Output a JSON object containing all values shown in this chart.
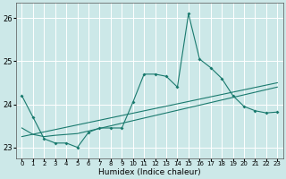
{
  "xlabel": "Humidex (Indice chaleur)",
  "bg_color": "#cce8e8",
  "grid_color": "#ffffff",
  "line_color": "#1a7a6e",
  "xlim": [
    -0.5,
    23.5
  ],
  "ylim": [
    22.75,
    26.35
  ],
  "yticks": [
    23,
    24,
    25,
    26
  ],
  "xticks": [
    0,
    1,
    2,
    3,
    4,
    5,
    6,
    7,
    8,
    9,
    10,
    11,
    12,
    13,
    14,
    15,
    16,
    17,
    18,
    19,
    20,
    21,
    22,
    23
  ],
  "series1_x": [
    0,
    1,
    2,
    3,
    4,
    5,
    6,
    7,
    8,
    9,
    10,
    11,
    12,
    13,
    14,
    15,
    16,
    17,
    18,
    19,
    20,
    21,
    22,
    23
  ],
  "series1_y": [
    24.2,
    23.7,
    23.2,
    23.1,
    23.1,
    23.0,
    23.35,
    23.45,
    23.45,
    23.45,
    24.05,
    24.7,
    24.7,
    24.65,
    24.4,
    26.1,
    25.05,
    24.85,
    24.6,
    24.2,
    23.95,
    23.85,
    23.8,
    23.82
  ],
  "series2_x": [
    0,
    1,
    2,
    3,
    4,
    5,
    6,
    7,
    8,
    9,
    10,
    11,
    12,
    13,
    14,
    15,
    16,
    17,
    18,
    19,
    20,
    21,
    22,
    23
  ],
  "series2_y": [
    23.45,
    23.3,
    23.25,
    23.28,
    23.3,
    23.32,
    23.38,
    23.44,
    23.5,
    23.56,
    23.62,
    23.68,
    23.74,
    23.8,
    23.86,
    23.92,
    23.98,
    24.04,
    24.1,
    24.16,
    24.22,
    24.28,
    24.34,
    24.4
  ],
  "series3_x": [
    0,
    23
  ],
  "series3_y": [
    23.25,
    24.5
  ]
}
